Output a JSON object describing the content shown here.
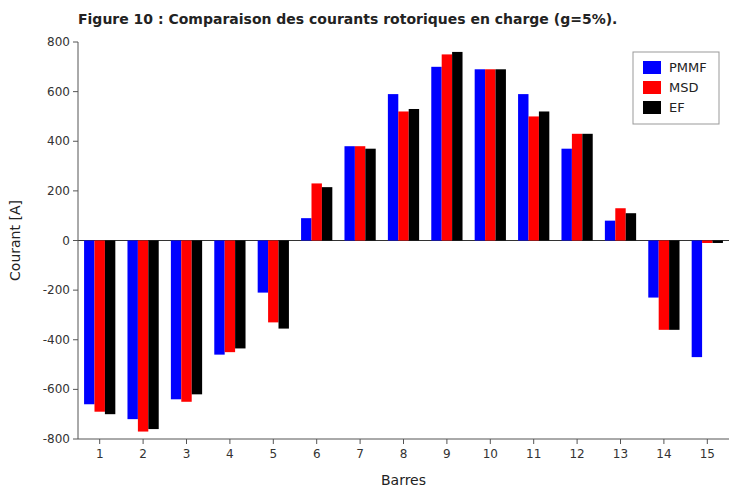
{
  "chart_data": {
    "type": "bar",
    "title": "Figure 10 : Comparaison des courants rotoriques en charge (g=5%).",
    "xlabel": "Barres",
    "ylabel": "Courant [A]",
    "categories": [
      1,
      2,
      3,
      4,
      5,
      6,
      7,
      8,
      9,
      10,
      11,
      12,
      13,
      14,
      15
    ],
    "series": [
      {
        "name": "PMMF",
        "color": "#0000FF",
        "values": [
          -660,
          -720,
          -640,
          -460,
          -210,
          90,
          380,
          590,
          700,
          690,
          590,
          370,
          80,
          -230,
          -470
        ]
      },
      {
        "name": "MSD",
        "color": "#FF0000",
        "values": [
          -690,
          -770,
          -650,
          -450,
          -330,
          230,
          380,
          520,
          750,
          690,
          500,
          430,
          130,
          -360,
          -10
        ]
      },
      {
        "name": "EF",
        "color": "#000000",
        "values": [
          -700,
          -760,
          -620,
          -435,
          -355,
          215,
          370,
          530,
          760,
          690,
          520,
          430,
          110,
          -360,
          -10
        ]
      }
    ],
    "ylim": [
      -800,
      800
    ],
    "yticks": [
      -800,
      -600,
      -400,
      -200,
      0,
      200,
      400,
      600,
      800
    ],
    "grid": false,
    "legend": "top-right"
  }
}
